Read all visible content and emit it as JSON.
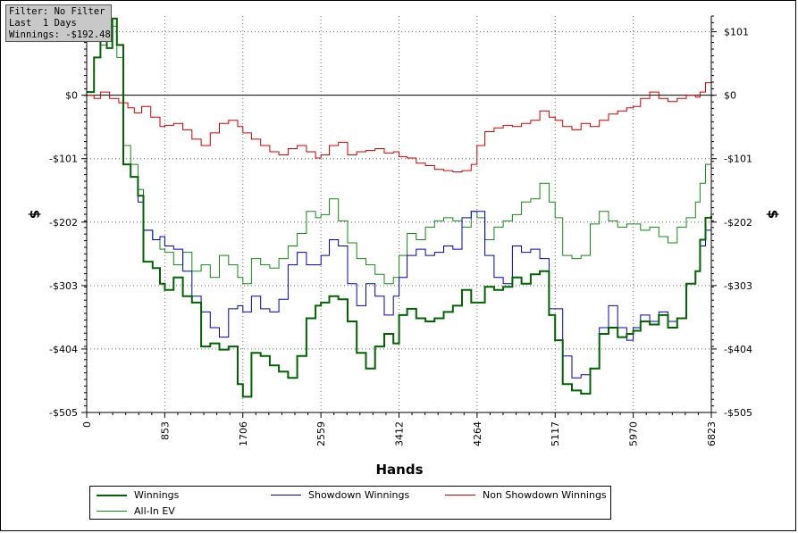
{
  "info_box": {
    "filter": "Filter: No Filter",
    "period": "Last  1 Days",
    "winnings": "Winnings: -$192.48"
  },
  "chart_data": {
    "type": "line",
    "xlabel": "Hands",
    "ylabel": "$",
    "xlim": [
      0,
      6823
    ],
    "ylim": [
      -505,
      126
    ],
    "x_ticks": [
      0,
      853,
      1706,
      2559,
      3412,
      4264,
      5117,
      5970,
      6823
    ],
    "y_ticks": [
      101,
      0,
      -101,
      -202,
      -303,
      -404,
      -505
    ],
    "y_tick_labels": [
      "$101",
      "$0",
      "-$101",
      "-$202",
      "-$303",
      "-$404",
      "-$505"
    ],
    "grid": true,
    "legend_position": "bottom",
    "series": [
      {
        "name": "Winnings",
        "color": "#006400",
        "points": [
          [
            0,
            5
          ],
          [
            80,
            60
          ],
          [
            150,
            90
          ],
          [
            220,
            75
          ],
          [
            280,
            122
          ],
          [
            330,
            80
          ],
          [
            400,
            -110
          ],
          [
            480,
            -130
          ],
          [
            560,
            -160
          ],
          [
            620,
            -265
          ],
          [
            720,
            -275
          ],
          [
            800,
            -300
          ],
          [
            853,
            -310
          ],
          [
            950,
            -290
          ],
          [
            1050,
            -320
          ],
          [
            1150,
            -330
          ],
          [
            1250,
            -400
          ],
          [
            1350,
            -395
          ],
          [
            1450,
            -405
          ],
          [
            1550,
            -400
          ],
          [
            1650,
            -460
          ],
          [
            1706,
            -480
          ],
          [
            1800,
            -410
          ],
          [
            1900,
            -415
          ],
          [
            2000,
            -430
          ],
          [
            2100,
            -440
          ],
          [
            2200,
            -450
          ],
          [
            2300,
            -415
          ],
          [
            2400,
            -355
          ],
          [
            2500,
            -335
          ],
          [
            2559,
            -330
          ],
          [
            2650,
            -320
          ],
          [
            2750,
            -325
          ],
          [
            2850,
            -360
          ],
          [
            2950,
            -410
          ],
          [
            3050,
            -435
          ],
          [
            3150,
            -400
          ],
          [
            3250,
            -380
          ],
          [
            3350,
            -395
          ],
          [
            3412,
            -350
          ],
          [
            3500,
            -340
          ],
          [
            3600,
            -355
          ],
          [
            3700,
            -360
          ],
          [
            3800,
            -355
          ],
          [
            3900,
            -345
          ],
          [
            4000,
            -335
          ],
          [
            4100,
            -310
          ],
          [
            4200,
            -330
          ],
          [
            4264,
            -330
          ],
          [
            4350,
            -305
          ],
          [
            4450,
            -310
          ],
          [
            4550,
            -305
          ],
          [
            4650,
            -290
          ],
          [
            4750,
            -300
          ],
          [
            4850,
            -285
          ],
          [
            4950,
            -280
          ],
          [
            5050,
            -350
          ],
          [
            5117,
            -390
          ],
          [
            5200,
            -460
          ],
          [
            5300,
            -470
          ],
          [
            5400,
            -475
          ],
          [
            5500,
            -435
          ],
          [
            5600,
            -380
          ],
          [
            5700,
            -370
          ],
          [
            5800,
            -385
          ],
          [
            5900,
            -380
          ],
          [
            5970,
            -375
          ],
          [
            6050,
            -360
          ],
          [
            6150,
            -365
          ],
          [
            6250,
            -350
          ],
          [
            6350,
            -370
          ],
          [
            6450,
            -355
          ],
          [
            6550,
            -300
          ],
          [
            6650,
            -280
          ],
          [
            6700,
            -230
          ],
          [
            6760,
            -195
          ],
          [
            6823,
            -192.48
          ]
        ]
      },
      {
        "name": "Showdown Winnings",
        "color": "#0000c8",
        "points": [
          [
            0,
            5
          ],
          [
            80,
            60
          ],
          [
            150,
            90
          ],
          [
            220,
            75
          ],
          [
            280,
            122
          ],
          [
            330,
            80
          ],
          [
            400,
            -110
          ],
          [
            480,
            -130
          ],
          [
            560,
            -170
          ],
          [
            620,
            -215
          ],
          [
            720,
            -230
          ],
          [
            800,
            -225
          ],
          [
            853,
            -240
          ],
          [
            950,
            -245
          ],
          [
            1050,
            -280
          ],
          [
            1150,
            -320
          ],
          [
            1250,
            -345
          ],
          [
            1350,
            -370
          ],
          [
            1450,
            -385
          ],
          [
            1550,
            -340
          ],
          [
            1650,
            -335
          ],
          [
            1706,
            -345
          ],
          [
            1800,
            -320
          ],
          [
            1900,
            -340
          ],
          [
            2000,
            -345
          ],
          [
            2100,
            -325
          ],
          [
            2200,
            -270
          ],
          [
            2300,
            -250
          ],
          [
            2400,
            -270
          ],
          [
            2500,
            -270
          ],
          [
            2559,
            -255
          ],
          [
            2650,
            -230
          ],
          [
            2750,
            -240
          ],
          [
            2850,
            -300
          ],
          [
            2950,
            -335
          ],
          [
            3050,
            -300
          ],
          [
            3150,
            -320
          ],
          [
            3250,
            -350
          ],
          [
            3350,
            -320
          ],
          [
            3412,
            -290
          ],
          [
            3500,
            -255
          ],
          [
            3600,
            -245
          ],
          [
            3700,
            -255
          ],
          [
            3800,
            -250
          ],
          [
            3900,
            -240
          ],
          [
            4000,
            -245
          ],
          [
            4100,
            -195
          ],
          [
            4200,
            -185
          ],
          [
            4264,
            -185
          ],
          [
            4350,
            -255
          ],
          [
            4450,
            -290
          ],
          [
            4550,
            -300
          ],
          [
            4650,
            -240
          ],
          [
            4750,
            -250
          ],
          [
            4850,
            -245
          ],
          [
            4950,
            -260
          ],
          [
            5050,
            -340
          ],
          [
            5117,
            -340
          ],
          [
            5200,
            -415
          ],
          [
            5300,
            -450
          ],
          [
            5400,
            -445
          ],
          [
            5500,
            -435
          ],
          [
            5600,
            -370
          ],
          [
            5700,
            -335
          ],
          [
            5800,
            -370
          ],
          [
            5900,
            -390
          ],
          [
            5970,
            -370
          ],
          [
            6050,
            -350
          ],
          [
            6150,
            -360
          ],
          [
            6250,
            -345
          ],
          [
            6350,
            -360
          ],
          [
            6450,
            -355
          ],
          [
            6550,
            -300
          ],
          [
            6650,
            -280
          ],
          [
            6700,
            -240
          ],
          [
            6760,
            -215
          ],
          [
            6823,
            -192.48
          ]
        ]
      },
      {
        "name": "Non Showdown Winnings",
        "color": "#d20000",
        "points": [
          [
            0,
            0
          ],
          [
            80,
            -5
          ],
          [
            150,
            5
          ],
          [
            250,
            -5
          ],
          [
            350,
            -12
          ],
          [
            450,
            -20
          ],
          [
            520,
            -28
          ],
          [
            600,
            -18
          ],
          [
            700,
            -35
          ],
          [
            800,
            -50
          ],
          [
            853,
            -48
          ],
          [
            950,
            -45
          ],
          [
            1050,
            -55
          ],
          [
            1150,
            -70
          ],
          [
            1250,
            -80
          ],
          [
            1350,
            -60
          ],
          [
            1450,
            -45
          ],
          [
            1550,
            -40
          ],
          [
            1650,
            -50
          ],
          [
            1706,
            -60
          ],
          [
            1800,
            -70
          ],
          [
            1900,
            -80
          ],
          [
            2000,
            -90
          ],
          [
            2100,
            -95
          ],
          [
            2200,
            -85
          ],
          [
            2300,
            -80
          ],
          [
            2400,
            -90
          ],
          [
            2500,
            -100
          ],
          [
            2559,
            -95
          ],
          [
            2650,
            -80
          ],
          [
            2750,
            -75
          ],
          [
            2850,
            -95
          ],
          [
            2950,
            -90
          ],
          [
            3050,
            -88
          ],
          [
            3150,
            -85
          ],
          [
            3250,
            -92
          ],
          [
            3350,
            -90
          ],
          [
            3412,
            -98
          ],
          [
            3500,
            -100
          ],
          [
            3600,
            -108
          ],
          [
            3700,
            -112
          ],
          [
            3800,
            -118
          ],
          [
            3900,
            -120
          ],
          [
            4000,
            -122
          ],
          [
            4100,
            -120
          ],
          [
            4200,
            -110
          ],
          [
            4264,
            -80
          ],
          [
            4350,
            -58
          ],
          [
            4450,
            -52
          ],
          [
            4550,
            -48
          ],
          [
            4650,
            -50
          ],
          [
            4750,
            -45
          ],
          [
            4850,
            -40
          ],
          [
            4950,
            -25
          ],
          [
            5050,
            -35
          ],
          [
            5117,
            -40
          ],
          [
            5200,
            -50
          ],
          [
            5300,
            -55
          ],
          [
            5400,
            -45
          ],
          [
            5500,
            -50
          ],
          [
            5600,
            -40
          ],
          [
            5700,
            -30
          ],
          [
            5800,
            -25
          ],
          [
            5900,
            -20
          ],
          [
            5970,
            -18
          ],
          [
            6050,
            -5
          ],
          [
            6150,
            5
          ],
          [
            6250,
            -5
          ],
          [
            6350,
            -10
          ],
          [
            6450,
            -5
          ],
          [
            6550,
            0
          ],
          [
            6650,
            -3
          ],
          [
            6700,
            5
          ],
          [
            6760,
            20
          ],
          [
            6823,
            12
          ]
        ]
      },
      {
        "name": "All-In EV",
        "color": "#138a13",
        "points": [
          [
            0,
            5
          ],
          [
            80,
            60
          ],
          [
            150,
            80
          ],
          [
            220,
            75
          ],
          [
            280,
            110
          ],
          [
            330,
            60
          ],
          [
            400,
            -80
          ],
          [
            480,
            -110
          ],
          [
            560,
            -150
          ],
          [
            620,
            -215
          ],
          [
            720,
            -230
          ],
          [
            800,
            -245
          ],
          [
            853,
            -250
          ],
          [
            950,
            -270
          ],
          [
            1050,
            -250
          ],
          [
            1150,
            -280
          ],
          [
            1250,
            -270
          ],
          [
            1350,
            -290
          ],
          [
            1450,
            -255
          ],
          [
            1550,
            -270
          ],
          [
            1650,
            -290
          ],
          [
            1706,
            -300
          ],
          [
            1800,
            -260
          ],
          [
            1900,
            -270
          ],
          [
            2000,
            -275
          ],
          [
            2100,
            -260
          ],
          [
            2200,
            -240
          ],
          [
            2300,
            -220
          ],
          [
            2400,
            -185
          ],
          [
            2500,
            -195
          ],
          [
            2559,
            -190
          ],
          [
            2650,
            -165
          ],
          [
            2750,
            -200
          ],
          [
            2850,
            -235
          ],
          [
            2950,
            -260
          ],
          [
            3050,
            -270
          ],
          [
            3150,
            -285
          ],
          [
            3250,
            -300
          ],
          [
            3350,
            -290
          ],
          [
            3412,
            -255
          ],
          [
            3500,
            -220
          ],
          [
            3600,
            -230
          ],
          [
            3700,
            -210
          ],
          [
            3800,
            -200
          ],
          [
            3900,
            -195
          ],
          [
            4000,
            -200
          ],
          [
            4100,
            -210
          ],
          [
            4200,
            -185
          ],
          [
            4264,
            -195
          ],
          [
            4350,
            -230
          ],
          [
            4450,
            -210
          ],
          [
            4550,
            -200
          ],
          [
            4650,
            -190
          ],
          [
            4750,
            -170
          ],
          [
            4850,
            -165
          ],
          [
            4950,
            -140
          ],
          [
            5050,
            -170
          ],
          [
            5117,
            -195
          ],
          [
            5200,
            -255
          ],
          [
            5300,
            -260
          ],
          [
            5400,
            -255
          ],
          [
            5500,
            -205
          ],
          [
            5600,
            -185
          ],
          [
            5700,
            -200
          ],
          [
            5800,
            -210
          ],
          [
            5900,
            -205
          ],
          [
            5970,
            -205
          ],
          [
            6050,
            -215
          ],
          [
            6150,
            -210
          ],
          [
            6250,
            -225
          ],
          [
            6350,
            -235
          ],
          [
            6450,
            -210
          ],
          [
            6550,
            -195
          ],
          [
            6650,
            -170
          ],
          [
            6700,
            -140
          ],
          [
            6760,
            -110
          ],
          [
            6823,
            -95
          ]
        ]
      }
    ]
  }
}
